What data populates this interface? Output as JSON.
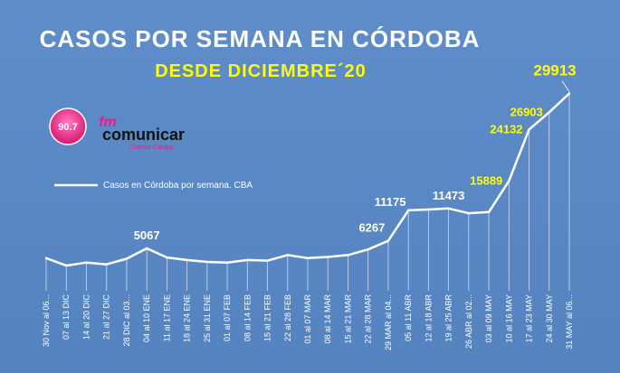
{
  "chart_data": {
    "type": "line",
    "title": "CASOS POR SEMANA EN CÓRDOBA",
    "subtitle": "DESDE DICIEMBRE´20",
    "legend": "Casos en Córdoba por semana. CBA",
    "legend_position": "left",
    "grid": "vertical",
    "line_color": "#ffffff",
    "categories": [
      "30 Nov al 06...",
      "07 al 13 DIC",
      "14 al 20 DIC",
      "21 al 27 DIC",
      "28 DIC al 03...",
      "04 al 10 ENE",
      "11 al 17 ENE",
      "18 al 24 ENE",
      "25 al 31 ENE",
      "01 al 07 FEB",
      "08 al 14 FEB",
      "15 al 21 FEB",
      "22 al 28 FEB",
      "01 al 07 MAR",
      "08 al 14 MAR",
      "15 al 21 MAR",
      "22 al 28 MAR",
      "29 MAR al 04...",
      "05 al 11 ABR",
      "12 al 18 ABR",
      "19 al 25 ABR",
      "26 ABR al 02...",
      "03 al 09 MAY",
      "10 al 16 MAY",
      "17 al 23 MAY",
      "24 al 30 MAY",
      "31 MAY al 06..."
    ],
    "values": [
      3500,
      2300,
      2800,
      2500,
      3400,
      5067,
      3600,
      3200,
      2900,
      2800,
      3200,
      3100,
      4000,
      3500,
      3700,
      4000,
      4900,
      6267,
      11175,
      11300,
      11473,
      10700,
      10900,
      15889,
      24132,
      26903,
      29913
    ],
    "data_labels": [
      {
        "index": 5,
        "text": "5067",
        "color": "#ffffff"
      },
      {
        "index": 17,
        "text": "6267",
        "color": "#ffffff"
      },
      {
        "index": 18,
        "text": "11175",
        "color": "#ffffff"
      },
      {
        "index": 20,
        "text": "11473",
        "color": "#ffffff"
      },
      {
        "index": 23,
        "text": "15889",
        "color": "#ffff00"
      },
      {
        "index": 24,
        "text": "24132",
        "color": "#ffff00"
      },
      {
        "index": 25,
        "text": "26903",
        "color": "#ffff00"
      },
      {
        "index": 26,
        "text": "29913",
        "color": "#ffff00"
      }
    ],
    "ylim": [
      0,
      31000
    ]
  },
  "logo": {
    "frequency": "90.7",
    "brand_prefix": "fm",
    "brand_name": "comunicar",
    "tagline": "Colonia Caroya"
  }
}
